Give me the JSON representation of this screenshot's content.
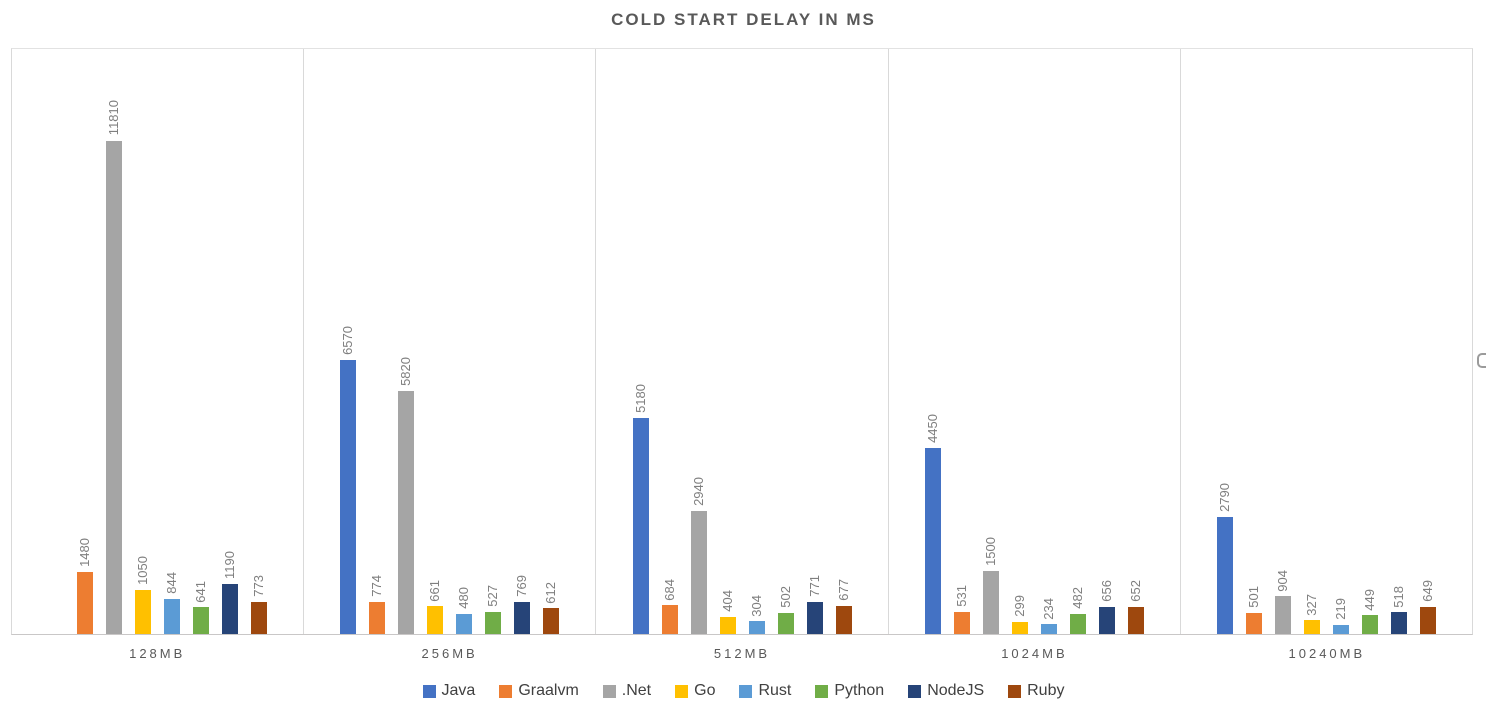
{
  "chart_data": {
    "type": "bar",
    "title": "COLD START DELAY IN MS",
    "xlabel": "",
    "ylabel": "",
    "categories": [
      "128MB",
      "256MB",
      "512MB",
      "1024MB",
      "10240MB"
    ],
    "series": [
      {
        "name": "Java",
        "color": "#4472C4",
        "values": [
          null,
          6570,
          5180,
          4450,
          2790
        ]
      },
      {
        "name": "Graalvm",
        "color": "#ED7D31",
        "values": [
          1480,
          774,
          684,
          531,
          501
        ]
      },
      {
        "name": ".Net",
        "color": "#A5A5A5",
        "values": [
          11810,
          5820,
          2940,
          1500,
          904
        ]
      },
      {
        "name": "Go",
        "color": "#FFC000",
        "values": [
          1050,
          661,
          404,
          299,
          327
        ]
      },
      {
        "name": "Rust",
        "color": "#5B9BD5",
        "values": [
          844,
          480,
          304,
          234,
          219
        ]
      },
      {
        "name": "Python",
        "color": "#70AD47",
        "values": [
          641,
          527,
          502,
          482,
          449
        ]
      },
      {
        "name": "NodeJS",
        "color": "#264478",
        "values": [
          1190,
          769,
          771,
          656,
          518
        ]
      },
      {
        "name": "Ruby",
        "color": "#9E480E",
        "values": [
          773,
          612,
          677,
          652,
          649
        ]
      }
    ],
    "ylim": [
      0,
      14000
    ],
    "y_axis_tick_labels_visible": false,
    "grid": "vertical-category-separators-only",
    "data_labels": "rotated-90-above-bars",
    "legend_position": "bottom",
    "colors": {
      "title_text": "#595959",
      "value_label_text": "#7F7F7F",
      "category_label_text": "#595959",
      "legend_text": "#404040",
      "gridline": "#D9D9D9",
      "axis_line": "#C9C7C7"
    }
  }
}
